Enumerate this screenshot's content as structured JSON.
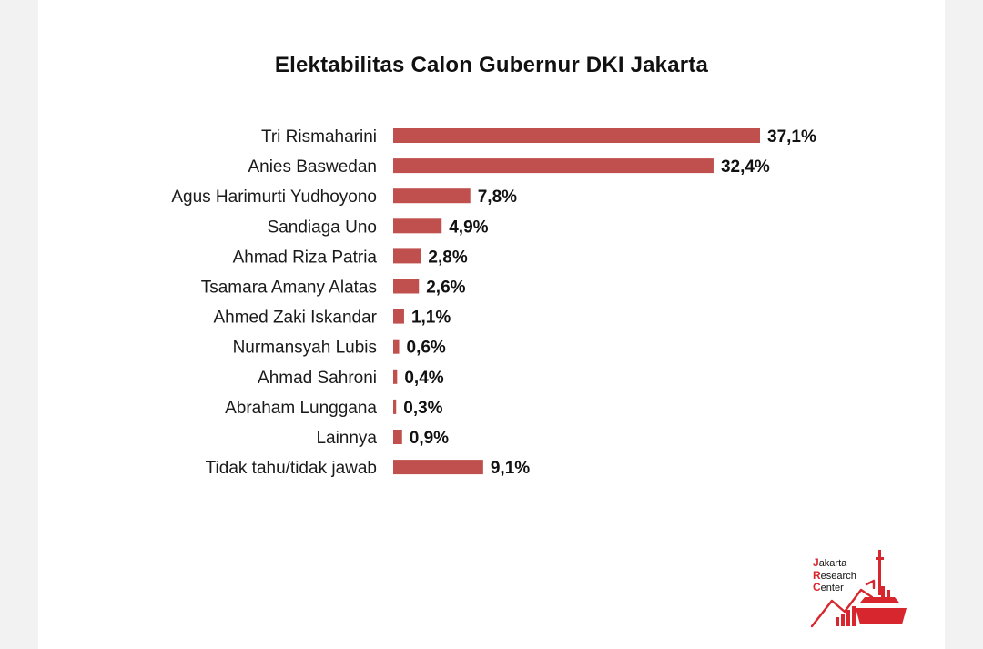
{
  "colors": {
    "bar": "#c0504d",
    "background": "#ffffff",
    "page_margin": "#f2f2f2",
    "logo_red": "#d7262e"
  },
  "chart_data": {
    "type": "bar",
    "orientation": "horizontal",
    "title": "Elektabilitas Calon Gubernur DKI Jakarta",
    "categories": [
      "Tri Rismaharini",
      "Anies Baswedan",
      "Agus Harimurti Yudhoyono",
      "Sandiaga Uno",
      "Ahmad Riza Patria",
      "Tsamara Amany Alatas",
      "Ahmed Zaki Iskandar",
      "Nurmansyah Lubis",
      "Ahmad Sahroni",
      "Abraham Lunggana",
      "Lainnya",
      "Tidak tahu/tidak jawab"
    ],
    "values": [
      37.1,
      32.4,
      7.8,
      4.9,
      2.8,
      2.6,
      1.1,
      0.6,
      0.4,
      0.3,
      0.9,
      9.1
    ],
    "value_labels": [
      "37,1%",
      "32,4%",
      "7,8%",
      "4,9%",
      "2,8%",
      "2,6%",
      "1,1%",
      "0,6%",
      "0,4%",
      "0,3%",
      "0,9%",
      "9,1%"
    ],
    "xlim": [
      0,
      37.1
    ],
    "grid": false,
    "legend": "none"
  },
  "logo": {
    "name": "jrc-logo-icon",
    "caps": [
      "J",
      "R",
      "C"
    ],
    "rests": [
      "akarta",
      "esearch",
      "enter"
    ]
  }
}
